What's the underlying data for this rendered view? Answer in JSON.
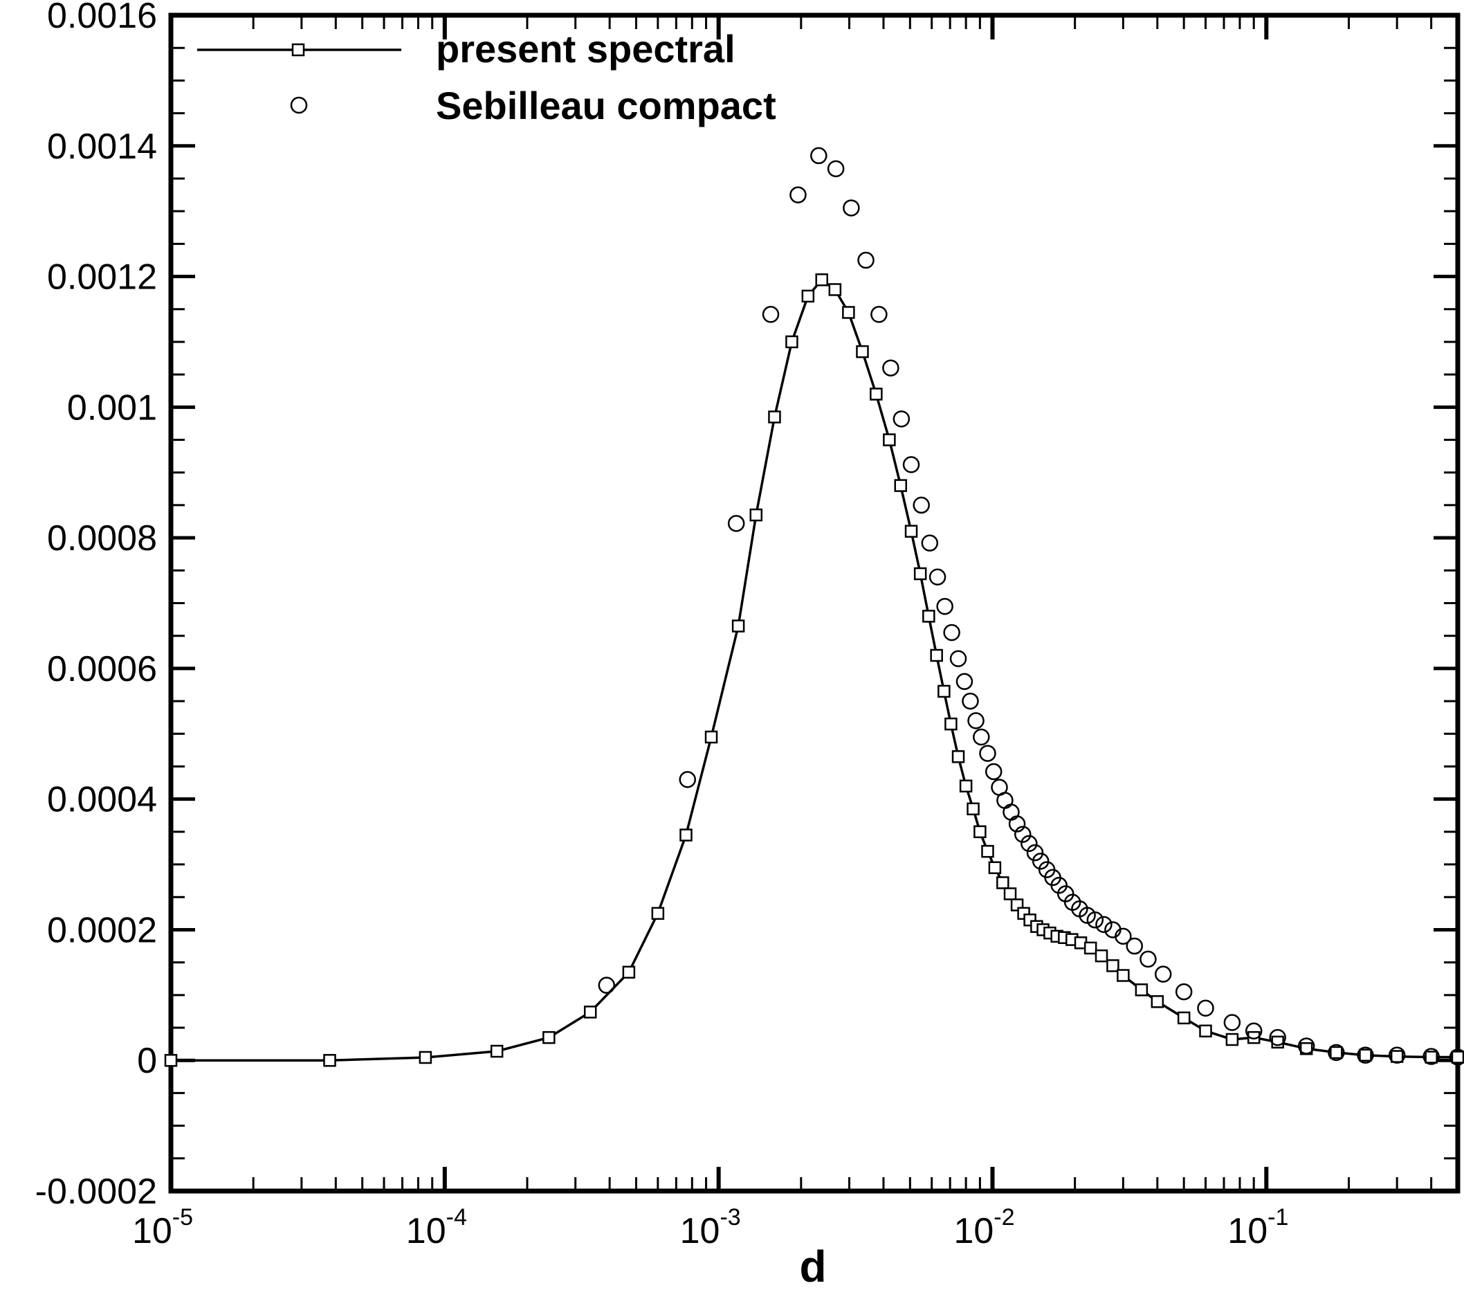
{
  "chart_data": {
    "type": "line",
    "title": "",
    "xlabel": "d",
    "ylabel": "",
    "x_scale": "log",
    "xlim": [
      1e-05,
      0.5
    ],
    "ylim": [
      -0.0002,
      0.0016
    ],
    "yticks": [
      -0.0002,
      0,
      0.0002,
      0.0004,
      0.0006,
      0.0008,
      0.001,
      0.0012,
      0.0014,
      0.0016
    ],
    "ytick_labels": [
      "-0.0002",
      "0",
      "0.0002",
      "0.0004",
      "0.0006",
      "0.0008",
      "0.001",
      "0.0012",
      "0.0014",
      "0.0016"
    ],
    "xticks": [
      {
        "value": 1e-05,
        "base": "10",
        "exponent": "-5"
      },
      {
        "value": 0.0001,
        "base": "10",
        "exponent": "-4"
      },
      {
        "value": 0.001,
        "base": "10",
        "exponent": "-3"
      },
      {
        "value": 0.01,
        "base": "10",
        "exponent": "-2"
      },
      {
        "value": 0.1,
        "base": "10",
        "exponent": "-1"
      }
    ],
    "grid": false,
    "legend_position": "top-left",
    "series": [
      {
        "name": "present spectral",
        "style": "line-with-square-markers",
        "color": "#000000",
        "x": [
          1e-05,
          3.8e-05,
          8.5e-05,
          0.000155,
          0.00024,
          0.00034,
          0.00047,
          0.0006,
          0.00076,
          0.00094,
          0.00118,
          0.00137,
          0.0016,
          0.00185,
          0.00212,
          0.00238,
          0.00266,
          0.00298,
          0.00335,
          0.00376,
          0.0042,
          0.00462,
          0.00505,
          0.00545,
          0.00585,
          0.00625,
          0.00665,
          0.00705,
          0.0075,
          0.008,
          0.0085,
          0.009,
          0.0096,
          0.0102,
          0.0109,
          0.0116,
          0.0123,
          0.013,
          0.0137,
          0.0145,
          0.0153,
          0.0162,
          0.0172,
          0.0183,
          0.0195,
          0.021,
          0.0228,
          0.025,
          0.0275,
          0.03,
          0.035,
          0.04,
          0.05,
          0.06,
          0.075,
          0.09,
          0.11,
          0.14,
          0.18,
          0.23,
          0.3,
          0.4,
          0.5
        ],
        "y": [
          0,
          0,
          4.5e-06,
          1.4e-05,
          3.5e-05,
          7.4e-05,
          0.000135,
          0.000225,
          0.000345,
          0.000495,
          0.000665,
          0.000835,
          0.000985,
          0.0011,
          0.00117,
          0.001195,
          0.00118,
          0.001145,
          0.001085,
          0.00102,
          0.00095,
          0.00088,
          0.00081,
          0.000745,
          0.00068,
          0.00062,
          0.000565,
          0.000515,
          0.000465,
          0.00042,
          0.000385,
          0.00035,
          0.00032,
          0.000295,
          0.000272,
          0.000255,
          0.000238,
          0.000225,
          0.000215,
          0.000205,
          0.0002,
          0.000195,
          0.00019,
          0.000188,
          0.000185,
          0.00018,
          0.000172,
          0.00016,
          0.000145,
          0.00013,
          0.000108,
          9e-05,
          6.5e-05,
          4.5e-05,
          3.2e-05,
          3.5e-05,
          2.8e-05,
          1.8e-05,
          1.2e-05,
          8e-06,
          6e-06,
          5e-06,
          5e-06
        ]
      },
      {
        "name": "Sebilleau compact",
        "style": "circle-markers",
        "color": "#000000",
        "x": [
          0.00039,
          0.00077,
          0.00116,
          0.00155,
          0.00195,
          0.00232,
          0.00268,
          0.00305,
          0.00345,
          0.00385,
          0.00425,
          0.00465,
          0.00505,
          0.0055,
          0.0059,
          0.0063,
          0.0067,
          0.0071,
          0.0075,
          0.0079,
          0.0083,
          0.0087,
          0.0091,
          0.0096,
          0.0101,
          0.0106,
          0.0111,
          0.0117,
          0.0123,
          0.0129,
          0.0136,
          0.0143,
          0.015,
          0.0158,
          0.0166,
          0.0175,
          0.0185,
          0.0196,
          0.0208,
          0.0222,
          0.0237,
          0.0255,
          0.0275,
          0.03,
          0.033,
          0.037,
          0.042,
          0.05,
          0.06,
          0.075,
          0.09,
          0.11,
          0.14,
          0.18,
          0.23,
          0.3,
          0.4,
          0.5
        ],
        "y": [
          0.000115,
          0.00043,
          0.000822,
          0.001142,
          0.001325,
          0.001385,
          0.001365,
          0.001305,
          0.001225,
          0.001142,
          0.00106,
          0.000982,
          0.000912,
          0.00085,
          0.000792,
          0.00074,
          0.000695,
          0.000655,
          0.000615,
          0.00058,
          0.00055,
          0.00052,
          0.000495,
          0.00047,
          0.000442,
          0.000418,
          0.000398,
          0.00038,
          0.000362,
          0.000346,
          0.000332,
          0.000318,
          0.000305,
          0.000292,
          0.00028,
          0.000268,
          0.000255,
          0.000242,
          0.000232,
          0.000222,
          0.000215,
          0.000208,
          0.0002,
          0.00019,
          0.000175,
          0.000155,
          0.000132,
          0.000105,
          8e-05,
          5.8e-05,
          4.5e-05,
          3.5e-05,
          2.2e-05,
          1.2e-05,
          8e-06,
          8e-06,
          6e-06,
          5e-06
        ]
      }
    ]
  }
}
